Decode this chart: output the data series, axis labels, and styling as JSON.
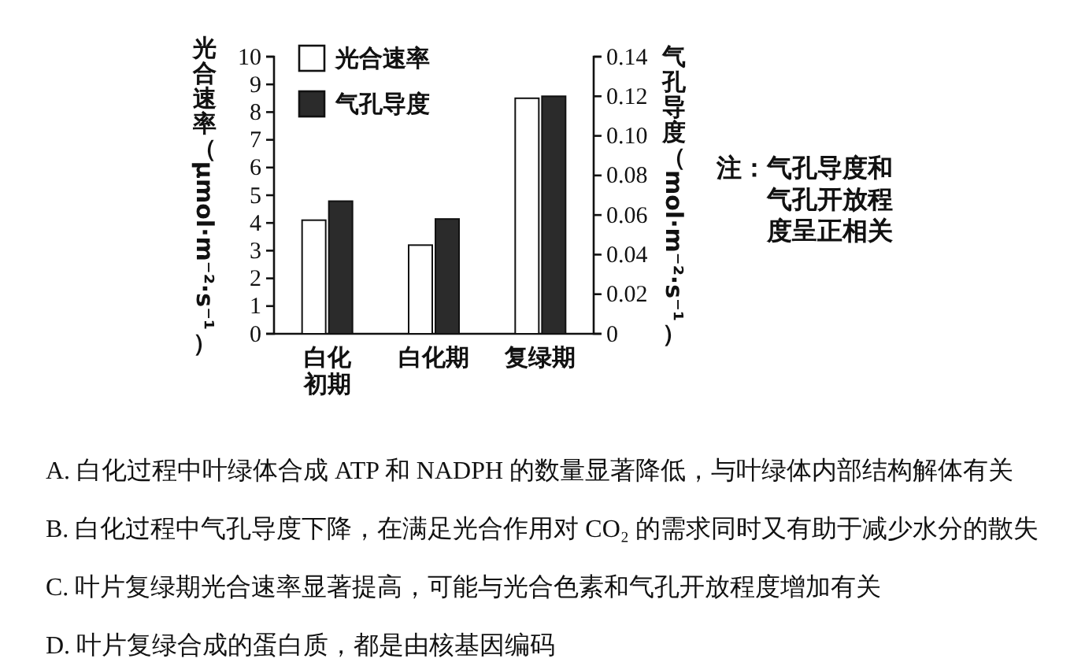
{
  "chart_data": {
    "type": "bar",
    "categories": [
      "白化初期",
      "白化期",
      "复绿期"
    ],
    "series": [
      {
        "name": "光合速率",
        "color": "#ffffff",
        "values": [
          4.1,
          3.2,
          8.5
        ]
      },
      {
        "name": "气孔导度",
        "color": "#2b2b2b",
        "values": [
          0.067,
          0.058,
          0.12
        ],
        "axis": "y2"
      }
    ],
    "ylabel": "光合速率（μmol·m⁻²·s⁻¹）",
    "y2label": "气孔导度（mol·m⁻²·s⁻¹）",
    "ylim": [
      0,
      10
    ],
    "yticks": [
      0,
      1,
      2,
      3,
      4,
      5,
      6,
      7,
      8,
      9,
      10
    ],
    "y2lim": [
      0,
      0.14
    ],
    "y2ticks": [
      0,
      0.02,
      0.04,
      0.06,
      0.08,
      {
        "value": 0.1,
        "label": "0.10"
      },
      0.12,
      0.14
    ],
    "legend": "top left",
    "annotations": [
      "注：气孔导度和气孔开放程度呈正相关",
      "A. 白化过程中叶绿体合成 ATP 和 NADPH 的数量显著降低，与叶绿体内部结构解体有关",
      "B. 白化过程中气孔导度下降，在满足光合作用对 CO₂ 的需求同时又有助于减少水分的散失",
      "C. 叶片复绿期光合速率显著提高，可能与光合色素和气孔开放程度增加有关",
      "D. 叶片复绿合成的蛋白质，都是由核基因编码"
    ]
  }
}
